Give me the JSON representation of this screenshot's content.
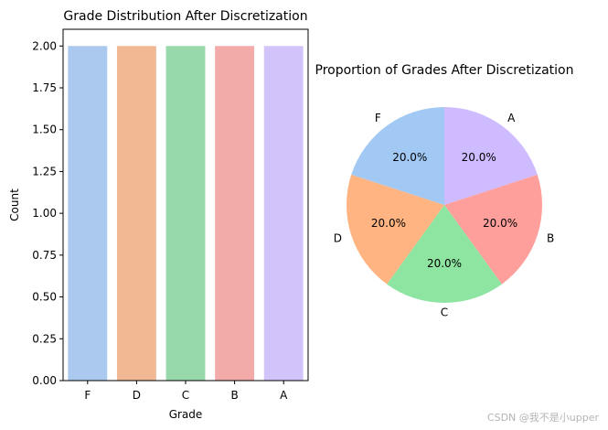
{
  "chart_data": [
    {
      "type": "bar",
      "title": "Grade Distribution After Discretization",
      "xlabel": "Grade",
      "ylabel": "Count",
      "categories": [
        "F",
        "D",
        "C",
        "B",
        "A"
      ],
      "values": [
        2,
        2,
        2,
        2,
        2
      ],
      "colors": [
        "#abc9ee",
        "#f0b994",
        "#97d9aa",
        "#f3abaa",
        "#d2c4fa"
      ],
      "ylim": [
        0,
        2.1
      ],
      "yticks": [
        0,
        0.25,
        0.5,
        0.75,
        1.0,
        1.25,
        1.5,
        1.75,
        2.0
      ],
      "ytick_labels": [
        "0.00",
        "0.25",
        "0.50",
        "0.75",
        "1.00",
        "1.25",
        "1.50",
        "1.75",
        "2.00"
      ],
      "grid": false
    },
    {
      "type": "pie",
      "title": "Proportion of Grades After Discretization",
      "labels": [
        "A",
        "B",
        "C",
        "D",
        "F"
      ],
      "values": [
        20,
        20,
        20,
        20,
        20
      ],
      "value_labels": [
        "20.0%",
        "20.0%",
        "20.0%",
        "20.0%",
        "20.0%"
      ],
      "colors": [
        "#cfbbff",
        "#ff9f9b",
        "#8de5a1",
        "#ffb482",
        "#a1c9f4"
      ],
      "start_angle_deg": 90,
      "direction": "clockwise"
    }
  ],
  "watermark": "CSDN @我不是小upper"
}
